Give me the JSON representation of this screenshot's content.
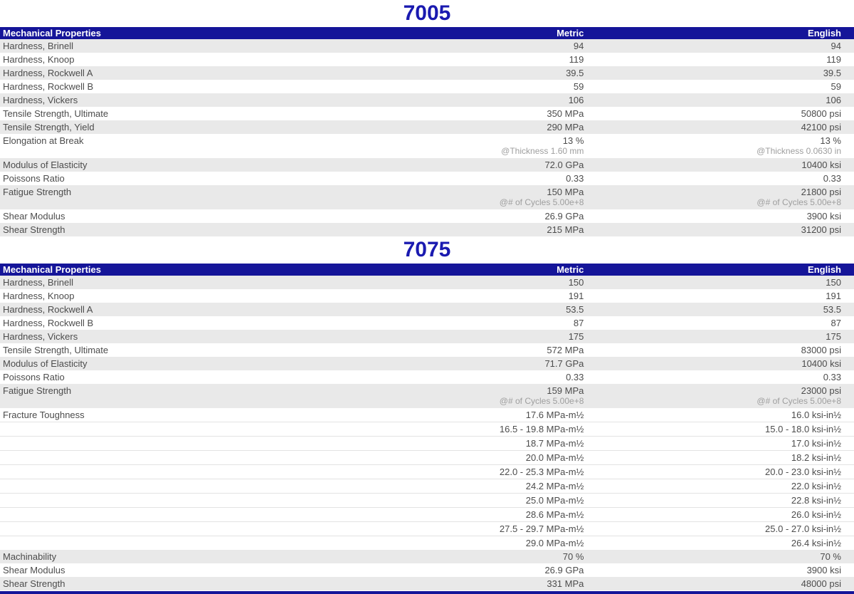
{
  "sections": [
    {
      "title": "7005",
      "columns": {
        "property": "Mechanical Properties",
        "metric": "Metric",
        "english": "English"
      },
      "rows": [
        {
          "property": "Hardness, Brinell",
          "metric": "94",
          "english": "94"
        },
        {
          "property": "Hardness, Knoop",
          "metric": "119",
          "english": "119"
        },
        {
          "property": "Hardness, Rockwell A",
          "metric": "39.5",
          "english": "39.5"
        },
        {
          "property": "Hardness, Rockwell B",
          "metric": "59",
          "english": "59"
        },
        {
          "property": "Hardness, Vickers",
          "metric": "106",
          "english": "106"
        },
        {
          "property": "Tensile Strength, Ultimate",
          "metric": "350 MPa",
          "english": "50800 psi"
        },
        {
          "property": "Tensile Strength, Yield",
          "metric": "290 MPa",
          "english": "42100 psi"
        },
        {
          "property": "Elongation at Break",
          "metric": "13 %",
          "english": "13 %",
          "metric_condition": "@Thickness 1.60 mm",
          "english_condition": "@Thickness 0.0630 in"
        },
        {
          "property": "Modulus of Elasticity",
          "metric": "72.0 GPa",
          "english": "10400 ksi"
        },
        {
          "property": "Poissons Ratio",
          "metric": "0.33",
          "english": "0.33"
        },
        {
          "property": "Fatigue Strength",
          "metric": "150 MPa",
          "english": "21800 psi",
          "metric_condition": "@# of Cycles 5.00e+8",
          "english_condition": "@# of Cycles 5.00e+8"
        },
        {
          "property": "Shear Modulus",
          "metric": "26.9 GPa",
          "english": "3900 ksi"
        },
        {
          "property": "Shear Strength",
          "metric": "215 MPa",
          "english": "31200 psi"
        }
      ]
    },
    {
      "title": "7075",
      "columns": {
        "property": "Mechanical Properties",
        "metric": "Metric",
        "english": "English"
      },
      "rows": [
        {
          "property": "Hardness, Brinell",
          "metric": "150",
          "english": "150"
        },
        {
          "property": "Hardness, Knoop",
          "metric": "191",
          "english": "191"
        },
        {
          "property": "Hardness, Rockwell A",
          "metric": "53.5",
          "english": "53.5"
        },
        {
          "property": "Hardness, Rockwell B",
          "metric": "87",
          "english": "87"
        },
        {
          "property": "Hardness, Vickers",
          "metric": "175",
          "english": "175"
        },
        {
          "property": "Tensile Strength, Ultimate",
          "metric": "572 MPa",
          "english": "83000 psi"
        },
        {
          "property": "Modulus of Elasticity",
          "metric": "71.7 GPa",
          "english": "10400 ksi"
        },
        {
          "property": "Poissons Ratio",
          "metric": "0.33",
          "english": "0.33"
        },
        {
          "property": "Fatigue Strength",
          "metric": "159 MPa",
          "english": "23000 psi",
          "metric_condition": "@# of Cycles 5.00e+8",
          "english_condition": "@# of Cycles 5.00e+8"
        },
        {
          "property": "Fracture Toughness",
          "metric": "17.6 MPa-m½",
          "english": "16.0 ksi-in½"
        },
        {
          "property": "",
          "metric": "16.5 - 19.8 MPa-m½",
          "english": "15.0 - 18.0 ksi-in½",
          "continuation": true
        },
        {
          "property": "",
          "metric": "18.7 MPa-m½",
          "english": "17.0 ksi-in½",
          "continuation": true
        },
        {
          "property": "",
          "metric": "20.0 MPa-m½",
          "english": "18.2 ksi-in½",
          "continuation": true
        },
        {
          "property": "",
          "metric": "22.0 - 25.3 MPa-m½",
          "english": "20.0 - 23.0 ksi-in½",
          "continuation": true
        },
        {
          "property": "",
          "metric": "24.2 MPa-m½",
          "english": "22.0 ksi-in½",
          "continuation": true
        },
        {
          "property": "",
          "metric": "25.0 MPa-m½",
          "english": "22.8 ksi-in½",
          "continuation": true
        },
        {
          "property": "",
          "metric": "28.6 MPa-m½",
          "english": "26.0 ksi-in½",
          "continuation": true
        },
        {
          "property": "",
          "metric": "27.5 - 29.7 MPa-m½",
          "english": "25.0 - 27.0 ksi-in½",
          "continuation": true
        },
        {
          "property": "",
          "metric": "29.0 MPa-m½",
          "english": "26.4 ksi-in½",
          "continuation": true
        },
        {
          "property": "Machinability",
          "metric": "70 %",
          "english": "70 %"
        },
        {
          "property": "Shear Modulus",
          "metric": "26.9 GPa",
          "english": "3900 ksi"
        },
        {
          "property": "Shear Strength",
          "metric": "331 MPa",
          "english": "48000 psi"
        }
      ]
    }
  ],
  "colors": {
    "header_bg": "#151599",
    "title_text": "#1a1ab0",
    "row_gray": "#e9e9e9",
    "body_text": "#4c4c4c",
    "condition_text": "#9e9e9e"
  }
}
